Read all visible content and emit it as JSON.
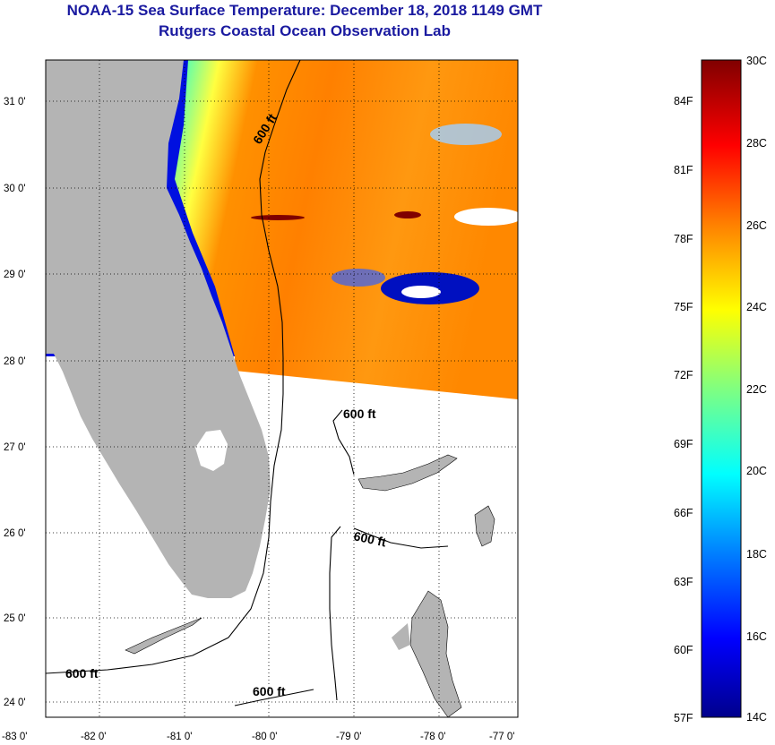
{
  "title": "NOAA-15 Sea Surface Temperature:  December 18, 2018 1149 GMT",
  "subtitle": "Rutgers Coastal Ocean Observation Lab",
  "axes": {
    "longitude_ticks": [
      "-83 0'",
      "-82 0'",
      "-81 0'",
      "-80 0'",
      "-79 0'",
      "-78 0'",
      "-77 0'"
    ],
    "latitude_ticks": [
      "31 0'",
      "30 0'",
      "29 0'",
      "28 0'",
      "27 0'",
      "26 0'",
      "25 0'",
      "24 0'"
    ]
  },
  "contour_labels": [
    "600 ft",
    "600 ft",
    "600 ft",
    "600 ft",
    "600 ft"
  ],
  "colorbar": {
    "celsius_labels": [
      "30C",
      "28C",
      "26C",
      "24C",
      "22C",
      "20C",
      "18C",
      "16C",
      "14C"
    ],
    "fahrenheit_labels": [
      "84F",
      "81F",
      "78F",
      "75F",
      "72F",
      "69F",
      "66F",
      "63F",
      "60F",
      "57F"
    ],
    "range_c": [
      14,
      30
    ],
    "range_f": [
      57,
      86
    ],
    "colors": [
      "#00008c",
      "#0000ff",
      "#0080ff",
      "#00ffff",
      "#80ff80",
      "#ffff00",
      "#ff8000",
      "#ff0000",
      "#800000"
    ]
  },
  "colors": {
    "land": "#b4b4b4",
    "title": "#1a1aa0",
    "grid": "#000000"
  }
}
